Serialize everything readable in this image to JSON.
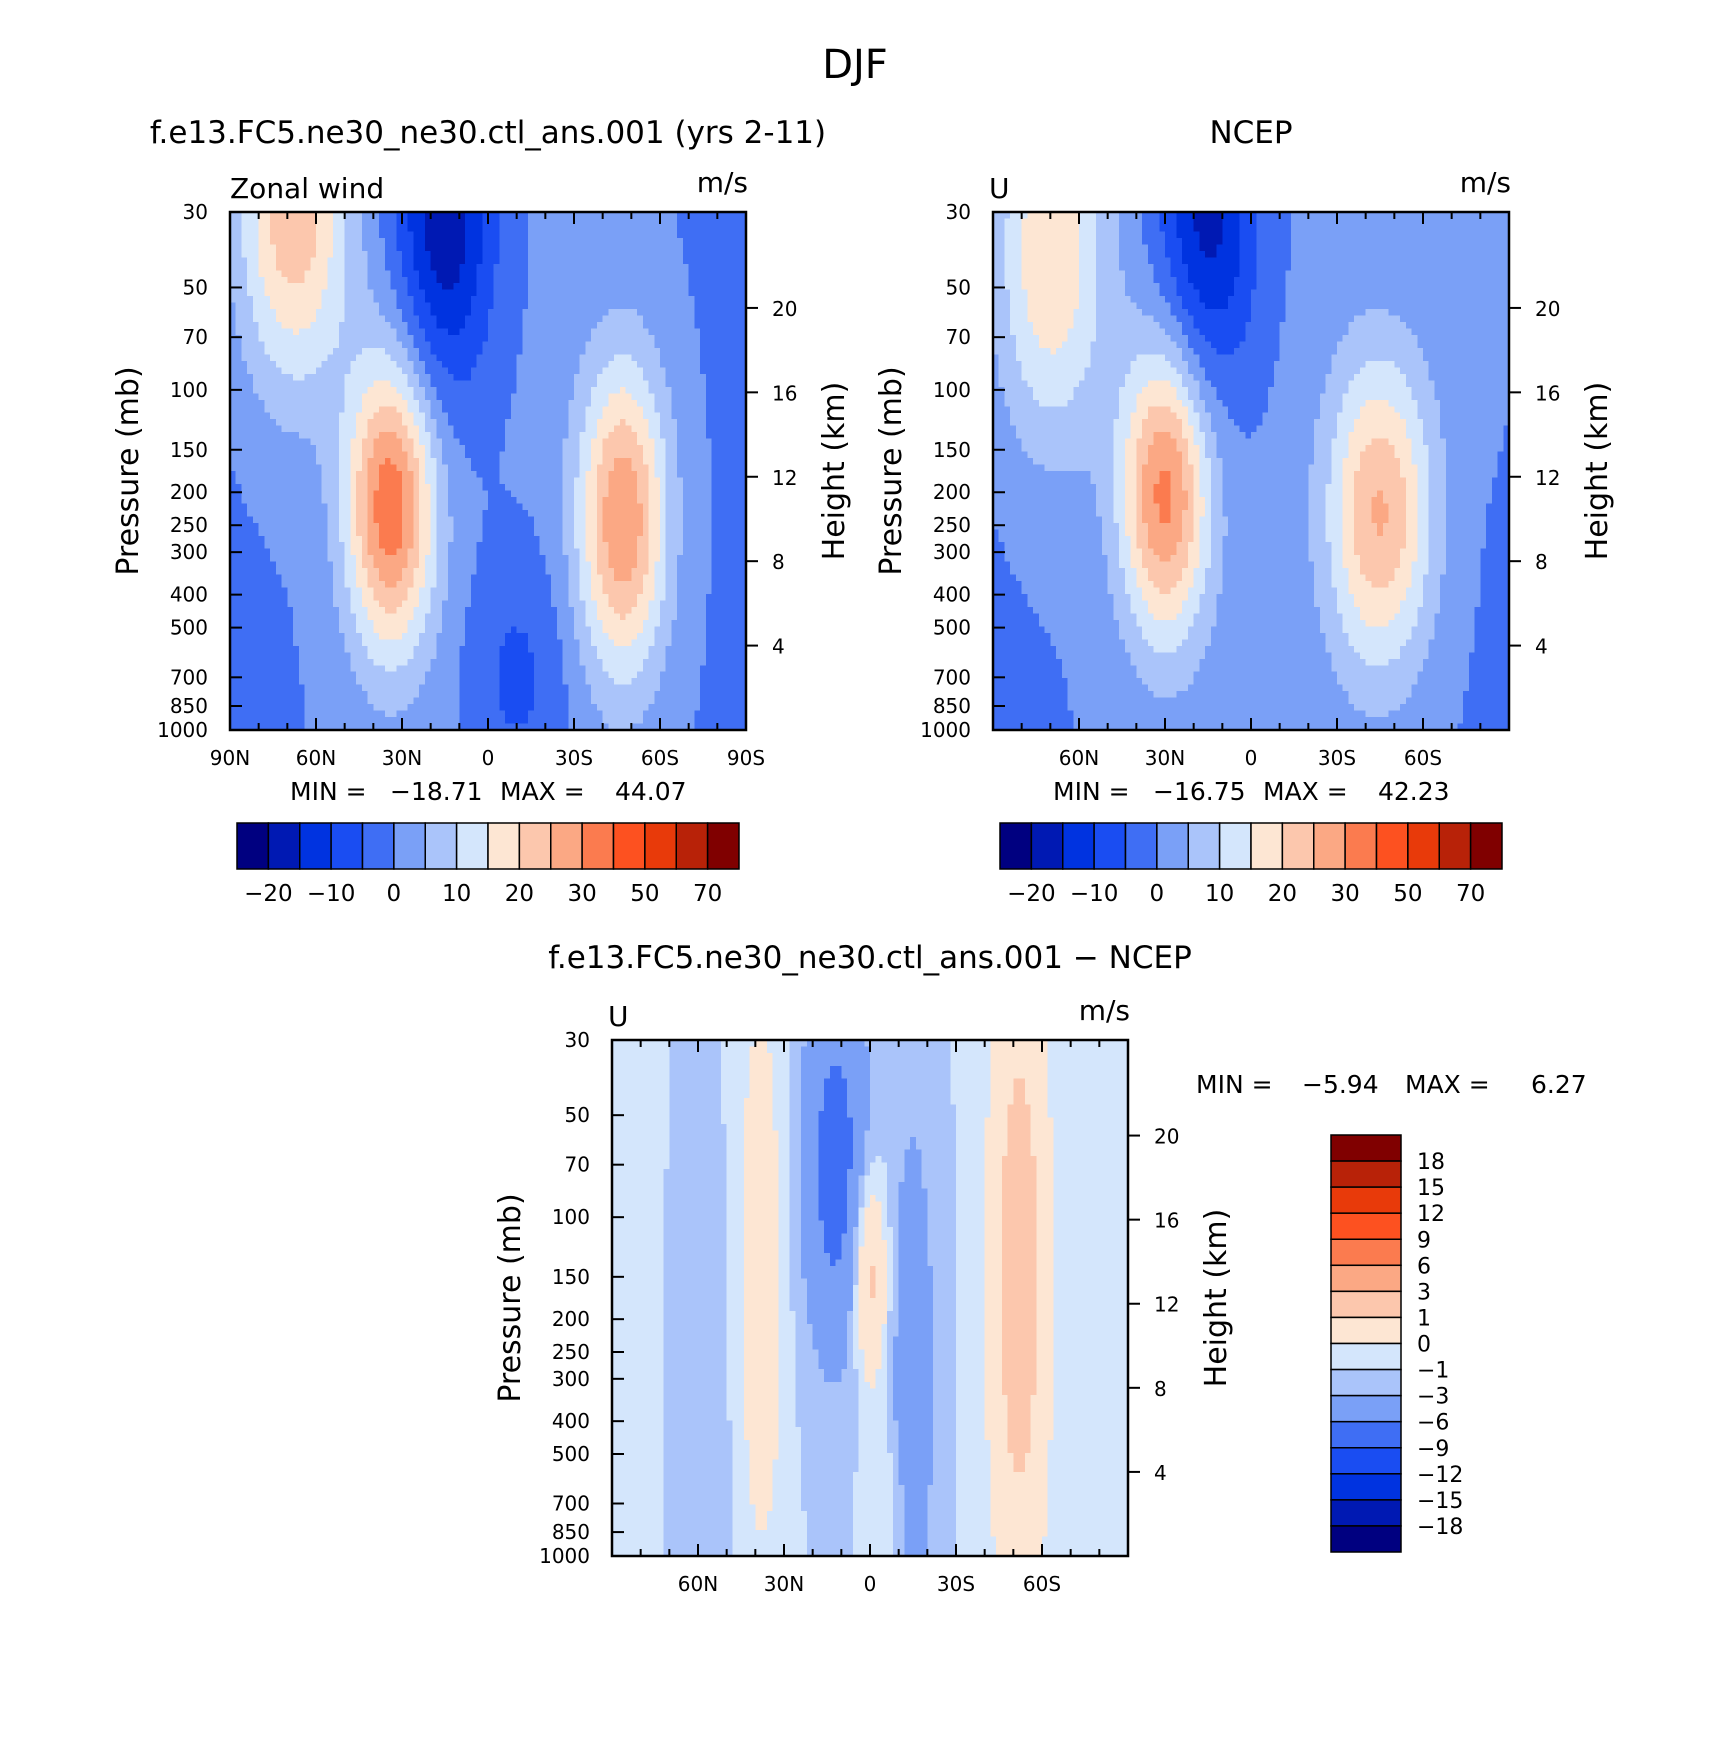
{
  "figure_title": "DJF",
  "chart_data": [
    {
      "type": "heatmap",
      "panel": "model",
      "title": "f.e13.FC5.ne30_ne30.ctl_ans.001 (yrs 2-11)",
      "left_label": "Zonal wind",
      "units": "m/s",
      "ylabel": "Pressure (mb)",
      "ylabel_right": "Height (km)",
      "xlim": [
        90,
        -90
      ],
      "ylim": [
        1000,
        30
      ],
      "y_scale": "log",
      "x_ticks": [
        {
          "v": 90,
          "label": "90N"
        },
        {
          "v": 60,
          "label": "60N"
        },
        {
          "v": 30,
          "label": "30N"
        },
        {
          "v": 0,
          "label": "0"
        },
        {
          "v": -30,
          "label": "30S"
        },
        {
          "v": -60,
          "label": "60S"
        },
        {
          "v": -90,
          "label": "90S"
        }
      ],
      "y_ticks": [
        30,
        50,
        70,
        100,
        150,
        200,
        250,
        300,
        400,
        500,
        700,
        850,
        1000
      ],
      "height_ticks": [
        20,
        16,
        12,
        8,
        4
      ],
      "min_label": "MIN =",
      "min_value": "−18.71",
      "max_label": "MAX =",
      "max_value": "44.07",
      "levels": [
        -25,
        -20,
        -15,
        -10,
        -5,
        0,
        5,
        10,
        15,
        20,
        25,
        30,
        40,
        50,
        60,
        70
      ],
      "colorbar_ticks": [
        "−20",
        "−10",
        "0",
        "10",
        "20",
        "30",
        "50",
        "70"
      ],
      "colors": [
        "#000080",
        "#0019b3",
        "#0033e0",
        "#1a4df2",
        "#3f6ef4",
        "#7aa0f7",
        "#aac4fa",
        "#d4e6fc",
        "#fde6d3",
        "#fcc7ad",
        "#fba884",
        "#fb7b4f",
        "#fd5120",
        "#e83a0a",
        "#b82208",
        "#800000"
      ],
      "features": [
        {
          "lat": 34,
          "p": 220,
          "amp": 33,
          "slat": 11,
          "sln": 0.7
        },
        {
          "lat": -47,
          "p": 240,
          "amp": 29,
          "slat": 11,
          "sln": 0.75
        },
        {
          "lat": 68,
          "p": 30,
          "amp": 24,
          "slat": 14,
          "sln": 0.85
        },
        {
          "lat": 15,
          "p": 30,
          "amp": -20,
          "slat": 12,
          "sln": 0.85
        },
        {
          "lat": -10,
          "p": 700,
          "amp": -7,
          "slat": 12,
          "sln": 0.6
        }
      ]
    },
    {
      "type": "heatmap",
      "panel": "obs",
      "title": "NCEP",
      "left_label": "U",
      "units": "m/s",
      "ylabel": "Pressure (mb)",
      "ylabel_right": "Height (km)",
      "xlim": [
        90,
        -90
      ],
      "ylim": [
        1000,
        30
      ],
      "y_scale": "log",
      "x_ticks": [
        {
          "v": 60,
          "label": "60N"
        },
        {
          "v": 30,
          "label": "30N"
        },
        {
          "v": 0,
          "label": "0"
        },
        {
          "v": -30,
          "label": "30S"
        },
        {
          "v": -60,
          "label": "60S"
        }
      ],
      "y_ticks": [
        30,
        50,
        70,
        100,
        150,
        200,
        250,
        300,
        400,
        500,
        700,
        850,
        1000
      ],
      "height_ticks": [
        20,
        16,
        12,
        8,
        4
      ],
      "min_label": "MIN =",
      "min_value": "−16.75",
      "max_label": "MAX =",
      "max_value": "42.23",
      "levels": [
        -25,
        -20,
        -15,
        -10,
        -5,
        0,
        5,
        10,
        15,
        20,
        25,
        30,
        40,
        50,
        60,
        70
      ],
      "colorbar_ticks": [
        "−20",
        "−10",
        "0",
        "10",
        "20",
        "30",
        "50",
        "70"
      ],
      "colors": [
        "#000080",
        "#0019b3",
        "#0033e0",
        "#1a4df2",
        "#3f6ef4",
        "#7aa0f7",
        "#aac4fa",
        "#d4e6fc",
        "#fde6d3",
        "#fcc7ad",
        "#fba884",
        "#fb7b4f",
        "#fd5120",
        "#e83a0a",
        "#b82208",
        "#800000"
      ],
      "features": [
        {
          "lat": 30,
          "p": 200,
          "amp": 31,
          "slat": 11,
          "sln": 0.7
        },
        {
          "lat": -45,
          "p": 230,
          "amp": 25,
          "slat": 13,
          "sln": 0.75
        },
        {
          "lat": 70,
          "p": 40,
          "amp": 20,
          "slat": 14,
          "sln": 0.9
        },
        {
          "lat": 15,
          "p": 30,
          "amp": -18,
          "slat": 12,
          "sln": 0.85
        },
        {
          "lat": -80,
          "p": 40,
          "amp": 4,
          "slat": 10,
          "sln": 0.8
        }
      ]
    },
    {
      "type": "heatmap",
      "panel": "diff",
      "title": "f.e13.FC5.ne30_ne30.ctl_ans.001 − NCEP",
      "left_label": "U",
      "units": "m/s",
      "ylabel": "Pressure (mb)",
      "ylabel_right": "Height (km)",
      "xlim": [
        90,
        -90
      ],
      "ylim": [
        1000,
        30
      ],
      "y_scale": "log",
      "x_ticks": [
        {
          "v": 60,
          "label": "60N"
        },
        {
          "v": 30,
          "label": "30N"
        },
        {
          "v": 0,
          "label": "0"
        },
        {
          "v": -30,
          "label": "30S"
        },
        {
          "v": -60,
          "label": "60S"
        }
      ],
      "y_ticks": [
        30,
        50,
        70,
        100,
        150,
        200,
        250,
        300,
        400,
        500,
        700,
        850,
        1000
      ],
      "height_ticks": [
        20,
        16,
        12,
        8,
        4
      ],
      "min_label": "MIN =",
      "min_value": "−5.94",
      "max_label": "MAX =",
      "max_value": "6.27",
      "levels": [
        -18,
        -15,
        -12,
        -9,
        -6,
        -3,
        -1,
        0,
        1,
        3,
        6,
        9,
        12,
        15,
        18
      ],
      "colorbar_ticks": [
        "18",
        "15",
        "12",
        "9",
        "6",
        "3",
        "1",
        "0",
        "−1",
        "−3",
        "−6",
        "−9",
        "−12",
        "−15",
        "−18"
      ],
      "colors": [
        "#000080",
        "#0019b3",
        "#0033e0",
        "#1a4df2",
        "#3f6ef4",
        "#7aa0f7",
        "#aac4fa",
        "#d4e6fc",
        "#fde6d3",
        "#fcc7ad",
        "#fba884",
        "#fb7b4f",
        "#fd5120",
        "#e83a0a",
        "#b82208",
        "#800000"
      ],
      "features": [
        {
          "lat": -52,
          "p": 150,
          "amp": 4.5,
          "slat": 7,
          "sln": 1.5
        },
        {
          "lat": 0,
          "p": 150,
          "amp": 4,
          "slat": 4,
          "sln": 0.5
        },
        {
          "lat": 38,
          "p": 150,
          "amp": 2,
          "slat": 6,
          "sln": 1.5
        },
        {
          "lat": 12,
          "p": 70,
          "amp": -4,
          "slat": 8,
          "sln": 0.9
        },
        {
          "lat": -15,
          "p": 300,
          "amp": -2.5,
          "slat": 5,
          "sln": 1.2
        },
        {
          "lat": 60,
          "p": 300,
          "amp": -0.8,
          "slat": 8,
          "sln": 1.2
        },
        {
          "lat": -5,
          "p": 700,
          "amp": 1.2,
          "slat": 5,
          "sln": 0.3
        },
        {
          "lat": 80,
          "p": 200,
          "amp": 0.6,
          "slat": 6,
          "sln": 1.5
        }
      ]
    }
  ]
}
